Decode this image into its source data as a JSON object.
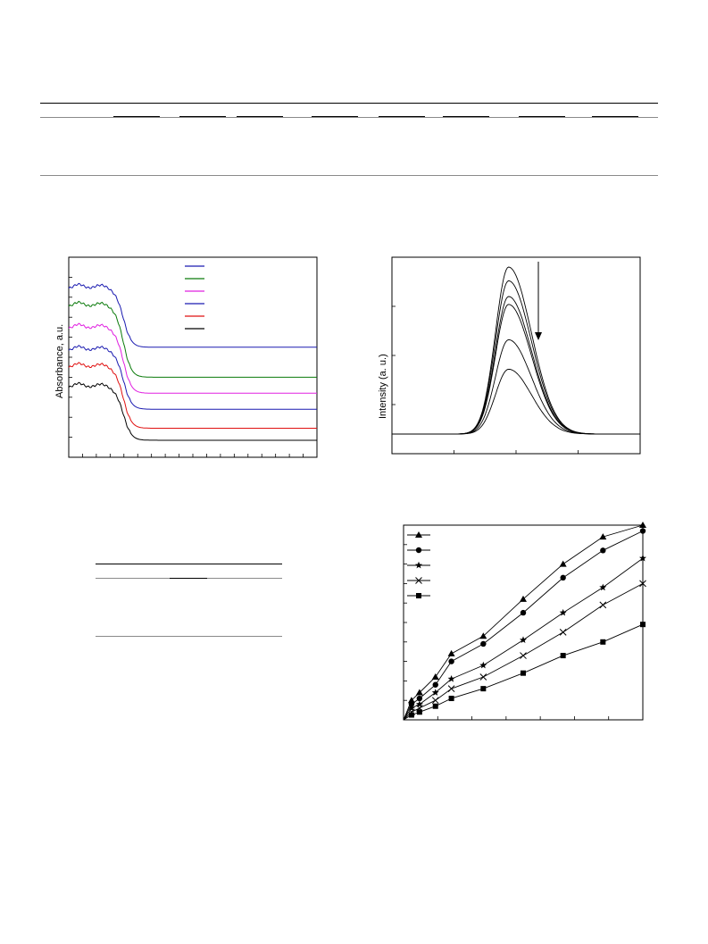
{
  "chart_data": [
    {
      "type": "line",
      "ylabel": "Absorbance, a.u.",
      "xlabel": "",
      "ylim": [
        0,
        10
      ],
      "xlim": [
        0,
        100
      ],
      "x_tick_count": 18,
      "y_tick_count": 10,
      "legend_position": "top-right",
      "series": [
        {
          "color": "#1a1ab0",
          "offset": 5.5,
          "plateau": 2.9
        },
        {
          "color": "#0a7a0a",
          "offset": 4.0,
          "plateau": 3.5
        },
        {
          "color": "#e020e0",
          "offset": 3.2,
          "plateau": 3.2
        },
        {
          "color": "#1a1ab0",
          "offset": 2.4,
          "plateau": 2.9
        },
        {
          "color": "#e01010",
          "offset": 1.45,
          "plateau": 3.0
        },
        {
          "color": "#000000",
          "offset": 0.85,
          "plateau": 2.6
        }
      ]
    },
    {
      "type": "line",
      "ylabel": "Intensity (a. u.)",
      "xlabel": "",
      "ylim": [
        0,
        10
      ],
      "xlim": [
        0,
        100
      ],
      "x_tick_count": 4,
      "y_tick_count": 4,
      "peak_x": 47,
      "peaks": [
        9.5,
        8.8,
        8.0,
        7.6,
        5.8,
        4.3
      ],
      "arrow": "down"
    },
    {
      "type": "line",
      "ylabel": "",
      "xlabel": "",
      "ylim": [
        0,
        100
      ],
      "xlim": [
        0,
        30
      ],
      "x_tick_count": 7,
      "y_tick_count": 10,
      "x": [
        0,
        1,
        2,
        4,
        6,
        10,
        15,
        20,
        25,
        30
      ],
      "legend_position": "top-left",
      "series": [
        {
          "marker": "triangle",
          "values": [
            0,
            10,
            14,
            22,
            34,
            43,
            62,
            80,
            94,
            100
          ]
        },
        {
          "marker": "circle",
          "values": [
            0,
            8,
            11,
            18,
            30,
            39,
            55,
            73,
            87,
            97
          ]
        },
        {
          "marker": "star",
          "values": [
            0,
            6,
            8,
            14,
            21,
            28,
            41,
            55,
            68,
            83
          ]
        },
        {
          "marker": "cross",
          "values": [
            0,
            4,
            6,
            10,
            16,
            22,
            33,
            45,
            59,
            70
          ]
        },
        {
          "marker": "square",
          "values": [
            0,
            2.5,
            4,
            7,
            11,
            16,
            24,
            33,
            40,
            49
          ]
        }
      ]
    }
  ]
}
